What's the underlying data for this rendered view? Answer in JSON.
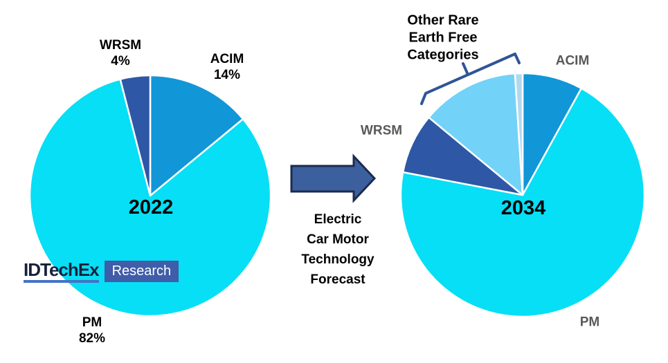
{
  "page": {
    "background": "#ffffff"
  },
  "flow": {
    "label_lines": [
      "Electric",
      "Car Motor",
      "Technology",
      "Forecast"
    ],
    "arrow_color": "#3c5f9e",
    "arrow_border": "#1b2b4e"
  },
  "logo": {
    "brand": "IDTechEx",
    "unit": "Research",
    "brand_color": "#16203c",
    "underline_color": "#4472c4",
    "unit_bg": "#3f5da8"
  },
  "left_pie": {
    "year_label": "2022",
    "labels": {
      "wrsm": {
        "name": "WRSM",
        "pct": "4%"
      },
      "acim": {
        "name": "ACIM",
        "pct": "14%"
      },
      "pm": {
        "name": "PM",
        "pct": "82%"
      }
    }
  },
  "right_pie": {
    "year_label": "2034",
    "labels": {
      "other": [
        "Other Rare",
        "Earth Free",
        "Categories"
      ],
      "acim": "ACIM",
      "wrsm": "WRSM",
      "pm": "PM"
    },
    "bracket_color": "#2f5597",
    "label_color": "#595959"
  },
  "chart_data": [
    {
      "type": "pie",
      "title": "2022",
      "categories": [
        "ACIM",
        "PM",
        "WRSM"
      ],
      "values": [
        14,
        82,
        4
      ],
      "colors": [
        "#1196d7",
        "#06dff5",
        "#2e58a5"
      ],
      "start": "12 o'clock",
      "direction": "clockwise",
      "separator_color": "#ffffff",
      "center": [
        217,
        283
      ],
      "radius": 174
    },
    {
      "type": "pie",
      "title": "2034",
      "categories": [
        "ACIM",
        "PM",
        "WRSM",
        "Other Rare Earth Free Categories",
        "Other Rare Earth Free Categories (minor)"
      ],
      "values": [
        8,
        70,
        8,
        13,
        1
      ],
      "values_estimated_from_angles": true,
      "colors": [
        "#1196d7",
        "#06dff5",
        "#2e58a5",
        "#72d2f8",
        "#b2d8ee"
      ],
      "start": "12 o'clock",
      "direction": "clockwise",
      "separator_color": "#ffffff",
      "center": [
        755,
        282
      ],
      "radius": 176,
      "annotation": {
        "text": "Other Rare Earth Free Categories",
        "applies_to": [
          "Other Rare Earth Free Categories",
          "Other Rare Earth Free Categories (minor)"
        ]
      }
    }
  ]
}
